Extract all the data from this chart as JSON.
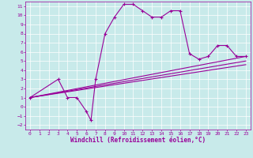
{
  "title": "",
  "xlabel": "Windchill (Refroidissement éolien,°C)",
  "background_color": "#c8eaea",
  "line_color": "#990099",
  "grid_color": "#ffffff",
  "xlim": [
    -0.5,
    23.5
  ],
  "ylim": [
    -2.5,
    11.5
  ],
  "xticks": [
    0,
    1,
    2,
    3,
    4,
    5,
    6,
    7,
    8,
    9,
    10,
    11,
    12,
    13,
    14,
    15,
    16,
    17,
    18,
    19,
    20,
    21,
    22,
    23
  ],
  "yticks": [
    -2,
    -1,
    0,
    1,
    2,
    3,
    4,
    5,
    6,
    7,
    8,
    9,
    10,
    11
  ],
  "series1_x": [
    0,
    3,
    4,
    5,
    6,
    6.5,
    7,
    8,
    9,
    10,
    11,
    12,
    13,
    14,
    15,
    16,
    17,
    18,
    19,
    20,
    21,
    22,
    23
  ],
  "series1_y": [
    1,
    3,
    1,
    1,
    -0.5,
    -1.5,
    3,
    8,
    9.8,
    11.2,
    11.2,
    10.5,
    9.8,
    9.8,
    10.5,
    10.5,
    5.8,
    5.2,
    5.5,
    6.7,
    6.7,
    5.5,
    5.5
  ],
  "series2_x": [
    0,
    23
  ],
  "series2_y": [
    1.0,
    5.5
  ],
  "series3_x": [
    0,
    23
  ],
  "series3_y": [
    1.0,
    4.6
  ],
  "series4_x": [
    0,
    23
  ],
  "series4_y": [
    1.0,
    5.0
  ],
  "linewidth": 0.8,
  "tick_fontsize": 4.5,
  "xlabel_fontsize": 5.5
}
